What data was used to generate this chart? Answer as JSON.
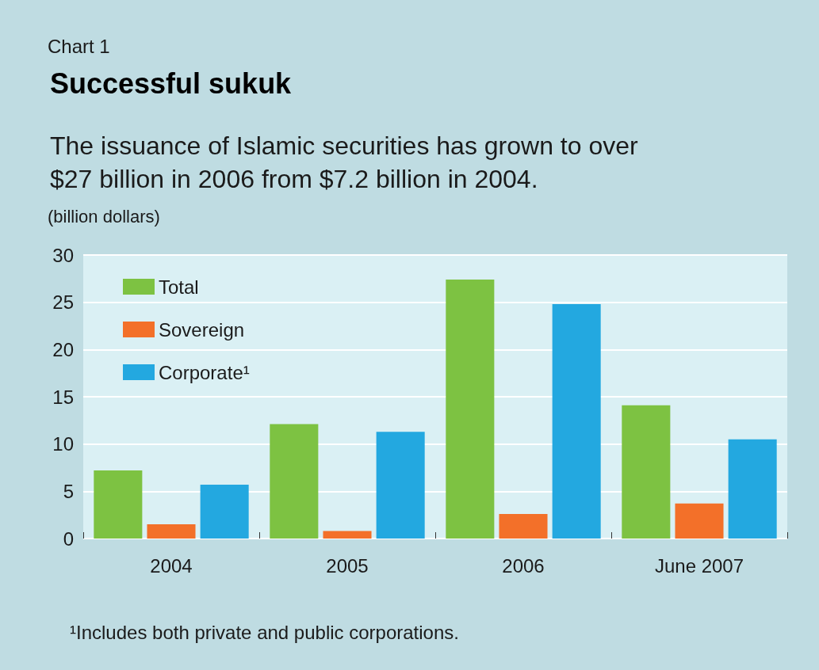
{
  "chart_data": {
    "type": "bar",
    "title": "Successful sukuk",
    "subtitle": "The issuance of Islamic securities has grown to over\n$27 billion in 2006 from $7.2 billion in 2004.",
    "ylabel": "(billion dollars)",
    "annotations": [
      "Chart 1",
      "¹Includes both private and public corporations."
    ],
    "categories": [
      "2004",
      "2005",
      "2006",
      "June 2007"
    ],
    "series": [
      {
        "name": "Total",
        "color": "#7dc242",
        "values": [
          7.2,
          12.1,
          27.4,
          14.1
        ]
      },
      {
        "name": "Sovereign",
        "color": "#f37029",
        "values": [
          1.5,
          0.8,
          2.6,
          3.7
        ]
      },
      {
        "name": "Corporate¹",
        "color": "#23a8e0",
        "values": [
          5.7,
          11.3,
          24.8,
          10.5
        ]
      }
    ],
    "ylim": [
      0,
      30
    ],
    "yticks": [
      0,
      5,
      10,
      15,
      20,
      25,
      30
    ],
    "grid": "y",
    "legend": "top left"
  }
}
